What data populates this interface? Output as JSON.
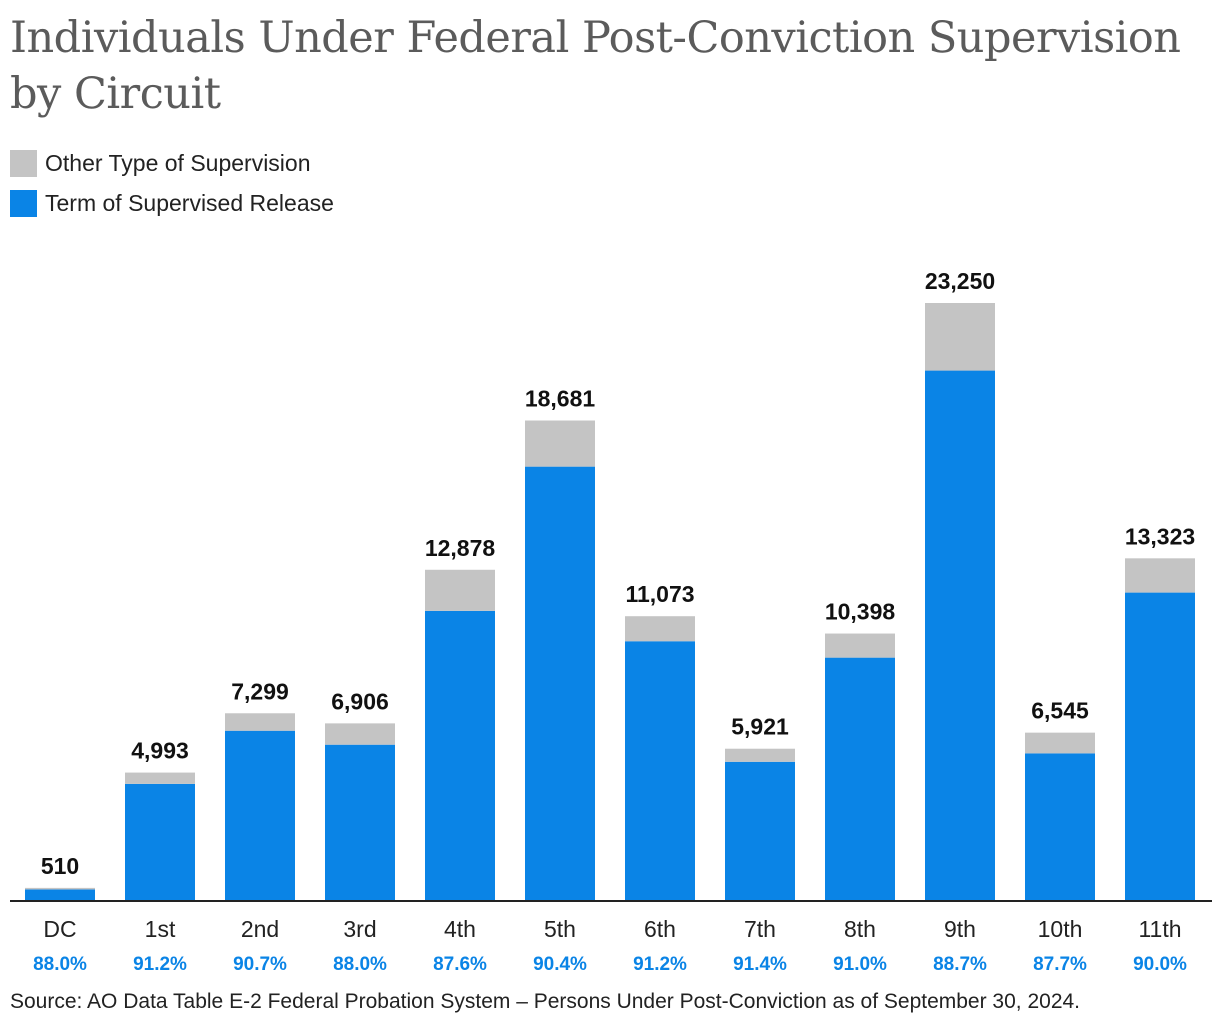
{
  "chart_data": {
    "type": "bar",
    "stacked": true,
    "title": "Individuals Under Federal Post-Conviction Supervision by Circuit",
    "xlabel": "",
    "ylabel": "",
    "ylim": [
      0,
      23250
    ],
    "categories": [
      "DC",
      "1st",
      "2nd",
      "3rd",
      "4th",
      "5th",
      "6th",
      "7th",
      "8th",
      "9th",
      "10th",
      "11th"
    ],
    "totals": [
      510,
      4993,
      7299,
      6906,
      12878,
      18681,
      11073,
      5921,
      10398,
      23250,
      6545,
      13323
    ],
    "total_labels": [
      "510",
      "4,993",
      "7,299",
      "6,906",
      "12,878",
      "18,681",
      "11,073",
      "5,921",
      "10,398",
      "23,250",
      "6,545",
      "13,323"
    ],
    "percent_labels": [
      "88.0%",
      "91.2%",
      "90.7%",
      "88.0%",
      "87.6%",
      "90.4%",
      "91.2%",
      "91.4%",
      "91.0%",
      "88.7%",
      "87.7%",
      "90.0%"
    ],
    "series": [
      {
        "name": "Term of Supervised Release",
        "color": "#0a84e6",
        "values": [
          449,
          4554,
          6620,
          6077,
          11281,
          16888,
          10099,
          5412,
          9462,
          20623,
          5740,
          11991
        ]
      },
      {
        "name": "Other Type of Supervision",
        "color": "#c4c4c4",
        "values": [
          61,
          439,
          679,
          829,
          1597,
          1793,
          974,
          509,
          936,
          2627,
          805,
          1332
        ]
      }
    ],
    "legend_position": "top-left",
    "percent_color": "#0a84e6",
    "source": "Source: AO Data Table E-2 Federal Probation System – Persons Under Post-Conviction as of September 30, 2024."
  },
  "legend": {
    "items": [
      {
        "label": "Other Type of Supervision",
        "color": "#c4c4c4"
      },
      {
        "label": "Term of Supervised Release",
        "color": "#0a84e6"
      }
    ]
  }
}
